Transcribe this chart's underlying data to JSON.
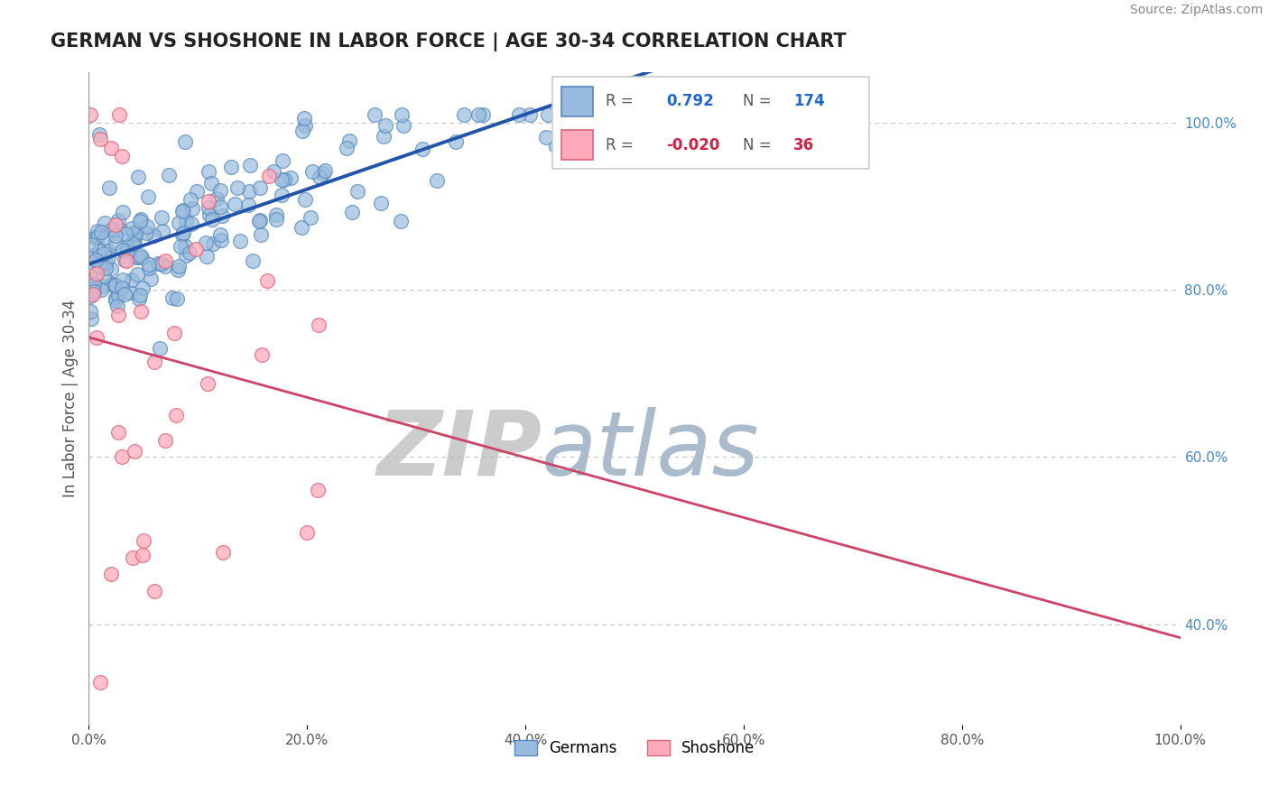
{
  "title": "GERMAN VS SHOSHONE IN LABOR FORCE | AGE 30-34 CORRELATION CHART",
  "source": "Source: ZipAtlas.com",
  "ylabel": "In Labor Force | Age 30-34",
  "xlim": [
    0.0,
    1.0
  ],
  "ylim": [
    0.28,
    1.06
  ],
  "german_R": 0.792,
  "german_N": 174,
  "shoshone_R": -0.02,
  "shoshone_N": 36,
  "blue_color": "#99BBDD",
  "blue_edge": "#5588BB",
  "pink_color": "#FFAABB",
  "pink_edge": "#DD6677",
  "trend_blue": "#2255AA",
  "trend_pink": "#CC4466",
  "background": "#FFFFFF",
  "grid_color": "#BBBBBB",
  "title_color": "#222222",
  "watermark_zip_color": "#CCCCCC",
  "watermark_atlas_color": "#AABBCC",
  "right_yticks": [
    0.4,
    0.6,
    0.8,
    1.0
  ],
  "right_yticklabels": [
    "40.0%",
    "60.0%",
    "80.0%",
    "100.0%"
  ],
  "xtick_labels": [
    "0.0%",
    "20.0%",
    "40.0%",
    "60.0%",
    "80.0%",
    "100.0%"
  ],
  "xtick_values": [
    0.0,
    0.2,
    0.4,
    0.6,
    0.8,
    1.0
  ],
  "seed": 42
}
